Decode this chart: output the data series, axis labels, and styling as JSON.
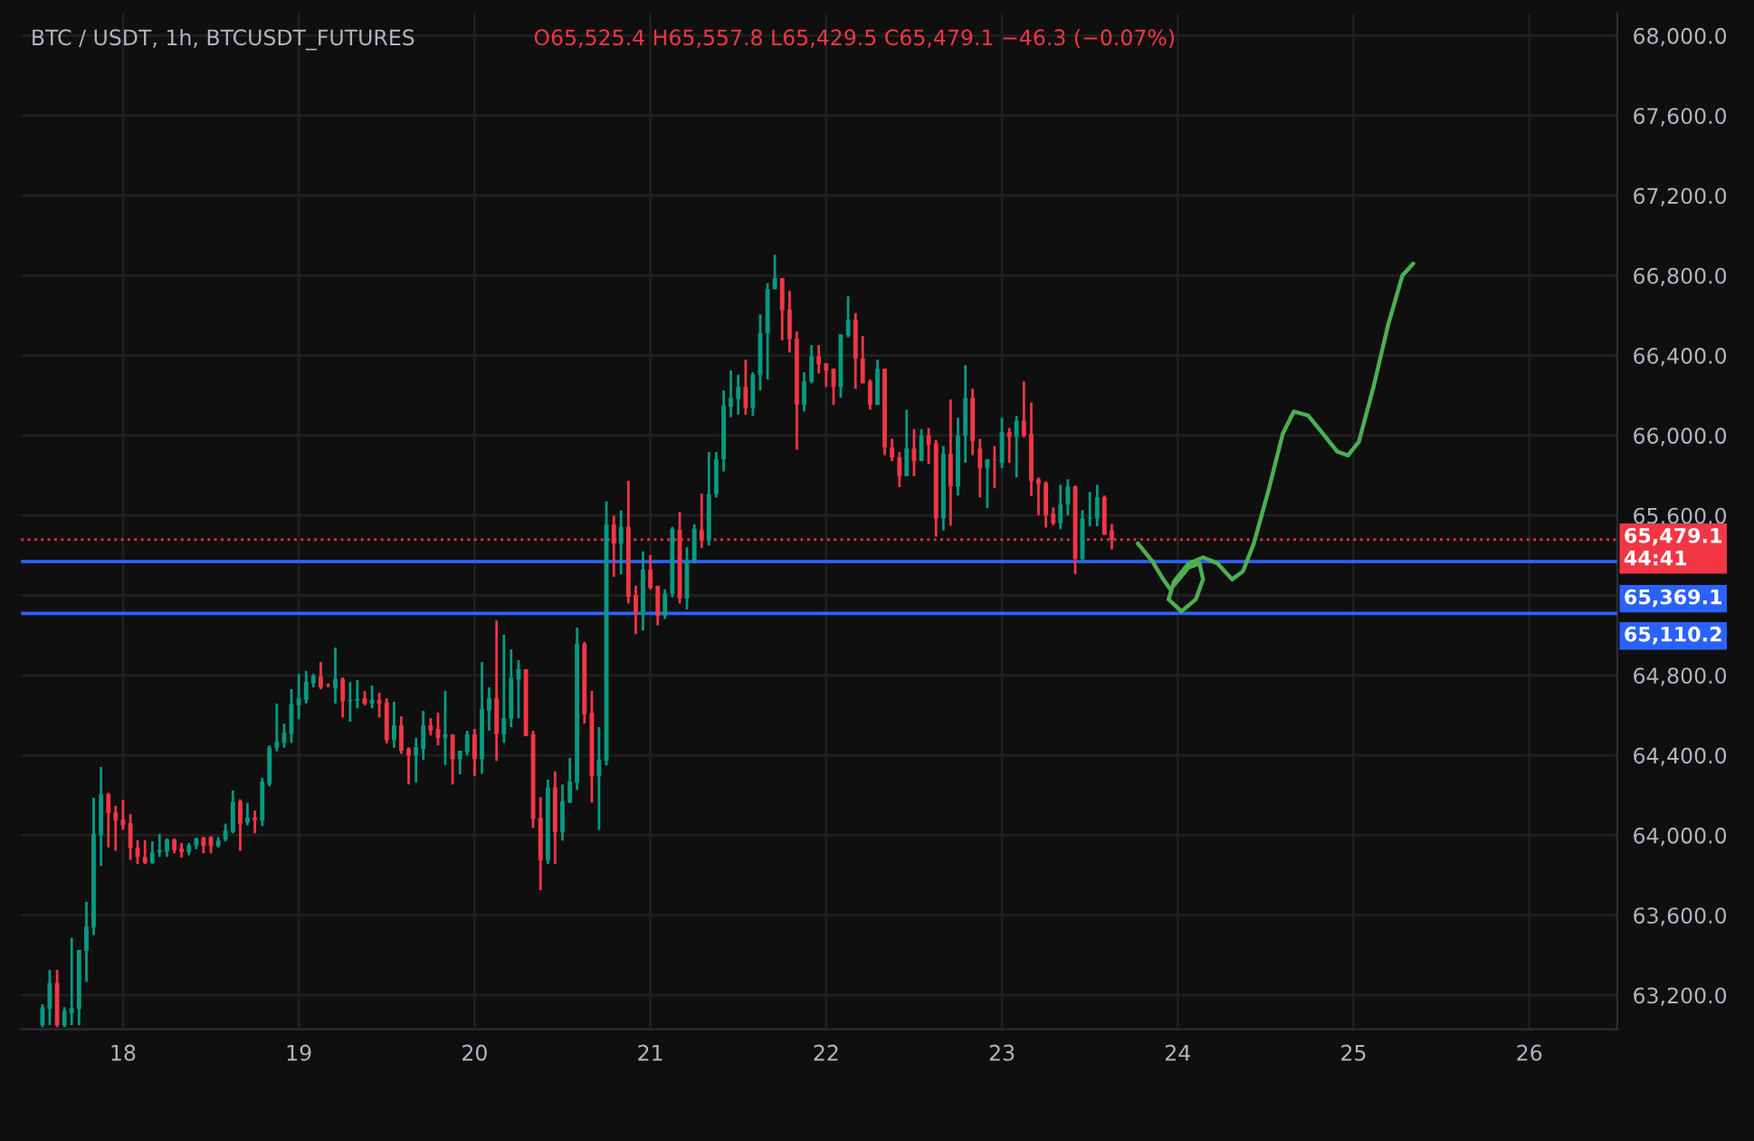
{
  "chart_data": {
    "type": "candlestick",
    "title": "BTC / USDT, 1h, BTCUSDT_FUTURES",
    "subtitle": "O65,525.4 H65,557.8 L65,429.5 C65,479.1 −46.3 (−0.07%)",
    "x": [
      17.542,
      17.583,
      17.625,
      17.667,
      17.708,
      17.75,
      17.792,
      17.833,
      17.875,
      17.917,
      17.958,
      18.0,
      18.042,
      18.083,
      18.125,
      18.167,
      18.208,
      18.25,
      18.292,
      18.333,
      18.375,
      18.417,
      18.458,
      18.5,
      18.542,
      18.583,
      18.625,
      18.667,
      18.708,
      18.75,
      18.792,
      18.833,
      18.875,
      18.917,
      18.958,
      19.0,
      19.042,
      19.083,
      19.125,
      19.167,
      19.208,
      19.25,
      19.292,
      19.333,
      19.375,
      19.417,
      19.458,
      19.5,
      19.542,
      19.583,
      19.625,
      19.667,
      19.708,
      19.75,
      19.792,
      19.833,
      19.875,
      19.917,
      19.958,
      20.0,
      20.042,
      20.083,
      20.125,
      20.167,
      20.208,
      20.25,
      20.292,
      20.333,
      20.375,
      20.417,
      20.458,
      20.5,
      20.542,
      20.583,
      20.625,
      20.667,
      20.708,
      20.75,
      20.792,
      20.833,
      20.875,
      20.917,
      20.958,
      21.0,
      21.042,
      21.083,
      21.125,
      21.167,
      21.208,
      21.25,
      21.292,
      21.333,
      21.375,
      21.417,
      21.458,
      21.5,
      21.542,
      21.583,
      21.625,
      21.667,
      21.708,
      21.75,
      21.792,
      21.833,
      21.875,
      21.917,
      21.958,
      22.0,
      22.042,
      22.083,
      22.125,
      22.167,
      22.208,
      22.25,
      22.292,
      22.333,
      22.375,
      22.417,
      22.458,
      22.5,
      22.542,
      22.583,
      22.625,
      22.667,
      22.708,
      22.75,
      22.792,
      22.833,
      22.875,
      22.917,
      22.958,
      23.0,
      23.042,
      23.083,
      23.125,
      23.167,
      23.208,
      23.25,
      23.292,
      23.333,
      23.375,
      23.417,
      23.458,
      23.5,
      23.542,
      23.583,
      23.625
    ],
    "ohlc": [
      [
        63050,
        63155,
        63040,
        63140
      ],
      [
        63131,
        63327,
        63050,
        63261
      ],
      [
        63261,
        63327,
        63040,
        63050
      ],
      [
        63050,
        63140,
        63040,
        63122
      ],
      [
        63110,
        63487,
        63050,
        63134
      ],
      [
        63131,
        63427,
        63050,
        63427
      ],
      [
        63421,
        63668,
        63267,
        63545
      ],
      [
        63539,
        64188,
        63500,
        64007
      ],
      [
        64000,
        64342,
        63847,
        64206
      ],
      [
        64206,
        64212,
        63940,
        64112
      ],
      [
        64115,
        64148,
        63922,
        64073
      ],
      [
        64079,
        64176,
        64028,
        64052
      ],
      [
        64061,
        64106,
        63877,
        63937
      ],
      [
        63937,
        63976,
        63856,
        63892
      ],
      [
        63892,
        63976,
        63856,
        63862
      ],
      [
        63862,
        63970,
        63856,
        63913
      ],
      [
        63916,
        64007,
        63892,
        63925
      ],
      [
        63919,
        63985,
        63892,
        63979
      ],
      [
        63979,
        63985,
        63910,
        63925
      ],
      [
        63934,
        63961,
        63889,
        63916
      ],
      [
        63916,
        63961,
        63900,
        63949
      ],
      [
        63949,
        63988,
        63930,
        63985
      ],
      [
        63991,
        63991,
        63910,
        63946
      ],
      [
        63991,
        63995,
        63910,
        63946
      ],
      [
        63946,
        63990,
        63940,
        63973
      ],
      [
        63979,
        64058,
        63970,
        64025
      ],
      [
        64016,
        64224,
        64010,
        64167
      ],
      [
        64170,
        64180,
        63922,
        64058
      ],
      [
        64064,
        64161,
        64050,
        64088
      ],
      [
        64088,
        64124,
        64010,
        64076
      ],
      [
        64073,
        64287,
        64046,
        64269
      ],
      [
        64257,
        64450,
        64245,
        64438
      ],
      [
        64438,
        64659,
        64420,
        64468
      ],
      [
        64462,
        64559,
        64438,
        64514
      ],
      [
        64508,
        64731,
        64462,
        64656
      ],
      [
        64650,
        64807,
        64580,
        64686
      ],
      [
        64677,
        64822,
        64660,
        64767
      ],
      [
        64761,
        64807,
        64740,
        64798
      ],
      [
        64795,
        64867,
        64730,
        64740
      ],
      [
        64752,
        64760,
        64740,
        64749
      ],
      [
        64734,
        64939,
        64659,
        64782
      ],
      [
        64782,
        64790,
        64589,
        64671
      ],
      [
        64671,
        64767,
        64568,
        64677
      ],
      [
        64674,
        64776,
        64635,
        64683
      ],
      [
        64686,
        64722,
        64650,
        64659
      ],
      [
        64659,
        64749,
        64635,
        64677
      ],
      [
        64677,
        64713,
        64589,
        64659
      ],
      [
        64665,
        64686,
        64459,
        64478
      ],
      [
        64478,
        64668,
        64438,
        64550
      ],
      [
        64550,
        64595,
        64408,
        64423
      ],
      [
        64432,
        64440,
        64254,
        64399
      ],
      [
        64399,
        64487,
        64263,
        64441
      ],
      [
        64432,
        64622,
        64378,
        64550
      ],
      [
        64550,
        64586,
        64500,
        64523
      ],
      [
        64532,
        64613,
        64450,
        64487
      ],
      [
        64487,
        64722,
        64351,
        64505
      ],
      [
        64505,
        64505,
        64254,
        64381
      ],
      [
        64381,
        64423,
        64305,
        64423
      ],
      [
        64417,
        64523,
        64400,
        64505
      ],
      [
        64505,
        64532,
        64296,
        64381
      ],
      [
        64381,
        64867,
        64308,
        64632
      ],
      [
        64622,
        64740,
        64523,
        64686
      ],
      [
        64686,
        65075,
        64372,
        64505
      ],
      [
        64505,
        65003,
        64462,
        64586
      ],
      [
        64583,
        64930,
        64541,
        64789
      ],
      [
        64779,
        64876,
        64586,
        64831
      ],
      [
        64831,
        64831,
        64496,
        64496
      ],
      [
        64505,
        64523,
        64037,
        64082
      ],
      [
        64088,
        64191,
        63726,
        63874
      ],
      [
        63874,
        64278,
        63856,
        64239
      ],
      [
        64239,
        64320,
        63856,
        64016
      ],
      [
        64016,
        64254,
        63973,
        64170
      ],
      [
        64164,
        64387,
        64161,
        64269
      ],
      [
        64263,
        65039,
        64227,
        64958
      ],
      [
        64958,
        64967,
        64559,
        64604
      ],
      [
        64613,
        64722,
        64164,
        64296
      ],
      [
        64296,
        64541,
        64028,
        64378
      ],
      [
        64372,
        65670,
        64350,
        65555
      ],
      [
        65555,
        65600,
        65293,
        65459
      ],
      [
        65459,
        65625,
        65305,
        65543
      ],
      [
        65543,
        65773,
        65160,
        65193
      ],
      [
        65202,
        65248,
        65006,
        65103
      ],
      [
        65103,
        65420,
        65024,
        65329
      ],
      [
        65329,
        65402,
        65230,
        65238
      ],
      [
        65248,
        65248,
        65051,
        65097
      ],
      [
        65097,
        65230,
        65082,
        65208
      ],
      [
        65208,
        65543,
        65190,
        65534
      ],
      [
        65528,
        65618,
        65160,
        65184
      ],
      [
        65184,
        65441,
        65130,
        65374
      ],
      [
        65374,
        65555,
        65360,
        65534
      ],
      [
        65528,
        65709,
        65438,
        65474
      ],
      [
        65474,
        65917,
        65450,
        65706
      ],
      [
        65706,
        65917,
        65690,
        65881
      ],
      [
        65881,
        66225,
        65821,
        66150
      ],
      [
        66144,
        66325,
        66092,
        66189
      ],
      [
        66183,
        66304,
        66104,
        66243
      ],
      [
        66243,
        66379,
        66104,
        66138
      ],
      [
        66138,
        66316,
        66098,
        66304
      ],
      [
        66301,
        66606,
        66225,
        66512
      ],
      [
        66512,
        66762,
        66280,
        66732
      ],
      [
        66732,
        66904,
        66732,
        66787
      ],
      [
        66787,
        66787,
        66476,
        66627
      ],
      [
        66630,
        66723,
        66415,
        66482
      ],
      [
        66485,
        66521,
        65929,
        66153
      ],
      [
        66153,
        66316,
        66120,
        66270
      ],
      [
        66270,
        66452,
        66261,
        66397
      ],
      [
        66397,
        66452,
        66310,
        66355
      ],
      [
        66361,
        66361,
        66243,
        66325
      ],
      [
        66334,
        66334,
        66153,
        66243
      ],
      [
        66243,
        66506,
        66189,
        66506
      ],
      [
        66500,
        66696,
        66491,
        66578
      ],
      [
        66578,
        66612,
        66234,
        66385
      ],
      [
        66385,
        66497,
        66261,
        66261
      ],
      [
        66270,
        66280,
        66129,
        66153
      ],
      [
        66153,
        66379,
        66153,
        66334
      ],
      [
        66334,
        66334,
        65902,
        65941
      ],
      [
        65941,
        65984,
        65872,
        65890
      ],
      [
        65890,
        65917,
        65742,
        65796
      ],
      [
        65796,
        66129,
        65796,
        65935
      ],
      [
        65935,
        66032,
        65796,
        65872
      ],
      [
        65872,
        66032,
        65872,
        65999
      ],
      [
        65999,
        66038,
        65857,
        65953
      ],
      [
        65962,
        65978,
        65494,
        65585
      ],
      [
        65585,
        65947,
        65525,
        65908
      ],
      [
        65908,
        66180,
        65549,
        65745
      ],
      [
        65745,
        66089,
        65700,
        65999
      ],
      [
        65999,
        66352,
        65863,
        66189
      ],
      [
        66189,
        66234,
        65902,
        65971
      ],
      [
        65935,
        65983,
        65691,
        65836
      ],
      [
        65836,
        65881,
        65636,
        65881
      ],
      [
        65881,
        65947,
        65736,
        65878
      ],
      [
        65863,
        66089,
        65836,
        66017
      ],
      [
        66017,
        66038,
        65863,
        65993
      ],
      [
        65993,
        66098,
        65790,
        66074
      ],
      [
        66074,
        66270,
        65990,
        65999
      ],
      [
        66008,
        66165,
        65697,
        65772
      ],
      [
        65781,
        65790,
        65600,
        65757
      ],
      [
        65763,
        65770,
        65540,
        65600
      ],
      [
        65609,
        65640,
        65550,
        65561
      ],
      [
        65561,
        65754,
        65531,
        65654
      ],
      [
        65654,
        65781,
        65600,
        65745
      ],
      [
        65745,
        65750,
        65307,
        65383
      ],
      [
        65383,
        65627,
        65370,
        65585
      ],
      [
        65585,
        65718,
        65546,
        65590
      ],
      [
        65585,
        65754,
        65546,
        65691
      ],
      [
        65691,
        65700,
        65503,
        65503
      ],
      [
        65525.4,
        65557.8,
        65429.5,
        65479.1
      ]
    ],
    "colors": [
      "#089981",
      "#089981",
      "#f23645",
      "#089981",
      "#089981",
      "#089981",
      "#089981",
      "#089981",
      "#089981",
      "#f23645",
      "#f23645",
      "#f23645",
      "#f23645",
      "#f23645",
      "#f23645",
      "#089981",
      "#089981",
      "#089981",
      "#f23645",
      "#f23645",
      "#089981",
      "#089981",
      "#f23645",
      "#f23645",
      "#089981",
      "#089981",
      "#089981",
      "#f23645",
      "#089981",
      "#f23645",
      "#089981",
      "#089981",
      "#089981",
      "#089981",
      "#089981",
      "#089981",
      "#089981",
      "#089981",
      "#f23645",
      "#f23645",
      "#089981",
      "#f23645",
      "#089981",
      "#089981",
      "#f23645",
      "#089981",
      "#f23645",
      "#f23645",
      "#089981",
      "#f23645",
      "#f23645",
      "#089981",
      "#089981",
      "#f23645",
      "#f23645",
      "#089981",
      "#f23645",
      "#089981",
      "#089981",
      "#f23645",
      "#089981",
      "#089981",
      "#f23645",
      "#089981",
      "#089981",
      "#089981",
      "#f23645",
      "#f23645",
      "#f23645",
      "#089981",
      "#f23645",
      "#089981",
      "#089981",
      "#089981",
      "#f23645",
      "#f23645",
      "#089981",
      "#089981",
      "#f23645",
      "#089981",
      "#f23645",
      "#f23645",
      "#089981",
      "#f23645",
      "#f23645",
      "#089981",
      "#089981",
      "#f23645",
      "#089981",
      "#089981",
      "#f23645",
      "#089981",
      "#089981",
      "#089981",
      "#089981",
      "#089981",
      "#f23645",
      "#089981",
      "#089981",
      "#089981",
      "#089981",
      "#f23645",
      "#f23645",
      "#f23645",
      "#089981",
      "#089981",
      "#f23645",
      "#f23645",
      "#f23645",
      "#089981",
      "#089981",
      "#f23645",
      "#f23645",
      "#f23645",
      "#089981",
      "#f23645",
      "#f23645",
      "#f23645",
      "#089981",
      "#f23645",
      "#089981",
      "#f23645",
      "#f23645",
      "#089981",
      "#f23645",
      "#089981",
      "#089981",
      "#f23645",
      "#f23645",
      "#089981",
      "#f23645",
      "#089981",
      "#f23645",
      "#089981",
      "#f23645",
      "#f23645",
      "#f23645",
      "#f23645",
      "#f23645",
      "#089981",
      "#089981",
      "#f23645",
      "#089981",
      "#089981",
      "#089981",
      "#f23645",
      "#f23645"
    ],
    "series": [
      {
        "type": "line",
        "color": "#4caf50",
        "x": [
          23.773,
          23.856,
          23.918,
          23.959,
          24.062,
          24.124,
          24.144,
          24.103,
          24.021,
          23.948,
          23.979,
          24.062,
          24.144,
          24.227,
          24.309,
          24.371,
          24.433,
          24.515,
          24.598,
          24.66,
          24.742,
          24.825,
          24.907,
          24.969,
          25.031,
          25.113,
          25.196,
          25.278,
          25.34
        ],
        "values": [
          65460,
          65370,
          65280,
          65230,
          65340,
          65360,
          65280,
          65180,
          65120,
          65180,
          65270,
          65360,
          65390,
          65360,
          65280,
          65320,
          65460,
          65720,
          66010,
          66120,
          66100,
          66010,
          65920,
          65900,
          65970,
          66240,
          66550,
          66800,
          66860
        ]
      }
    ],
    "ref_lines": [
      {
        "axis": "y",
        "value": 65479.1,
        "label": "65,479.1",
        "color": "#f23645",
        "line_style": "dotted"
      },
      {
        "axis": "y",
        "value": 65369.1,
        "label": "65,369.1",
        "color": "#2962ff",
        "line_style": "solid"
      },
      {
        "axis": "y",
        "value": 65110.2,
        "label": "65,110.2",
        "color": "#2962ff",
        "line_style": "solid"
      }
    ],
    "annotations": [
      "44:41"
    ],
    "xlim": [
      17.42,
      26.5
    ],
    "ylim": [
      63030,
      68110
    ],
    "xticks": [
      18,
      19,
      20,
      21,
      22,
      23,
      24,
      25,
      26
    ],
    "yticks": [
      {
        "value": 63200,
        "label": "63,200.0"
      },
      {
        "value": 63600,
        "label": "63,600.0"
      },
      {
        "value": 64000,
        "label": "64,000.0"
      },
      {
        "value": 64400,
        "label": "64,400.0"
      },
      {
        "value": 64800,
        "label": "64,800.0"
      },
      {
        "value": 65200,
        "label": null
      },
      {
        "value": 65600,
        "label": "65,600.0"
      },
      {
        "value": 66000,
        "label": "66,000.0"
      },
      {
        "value": 66400,
        "label": "66,400.0"
      },
      {
        "value": 66800,
        "label": "66,800.0"
      },
      {
        "value": 67200,
        "label": "67,200.0"
      },
      {
        "value": 67600,
        "label": "67,600.0"
      },
      {
        "value": 68000,
        "label": "68,000.0"
      }
    ],
    "grid": true
  }
}
